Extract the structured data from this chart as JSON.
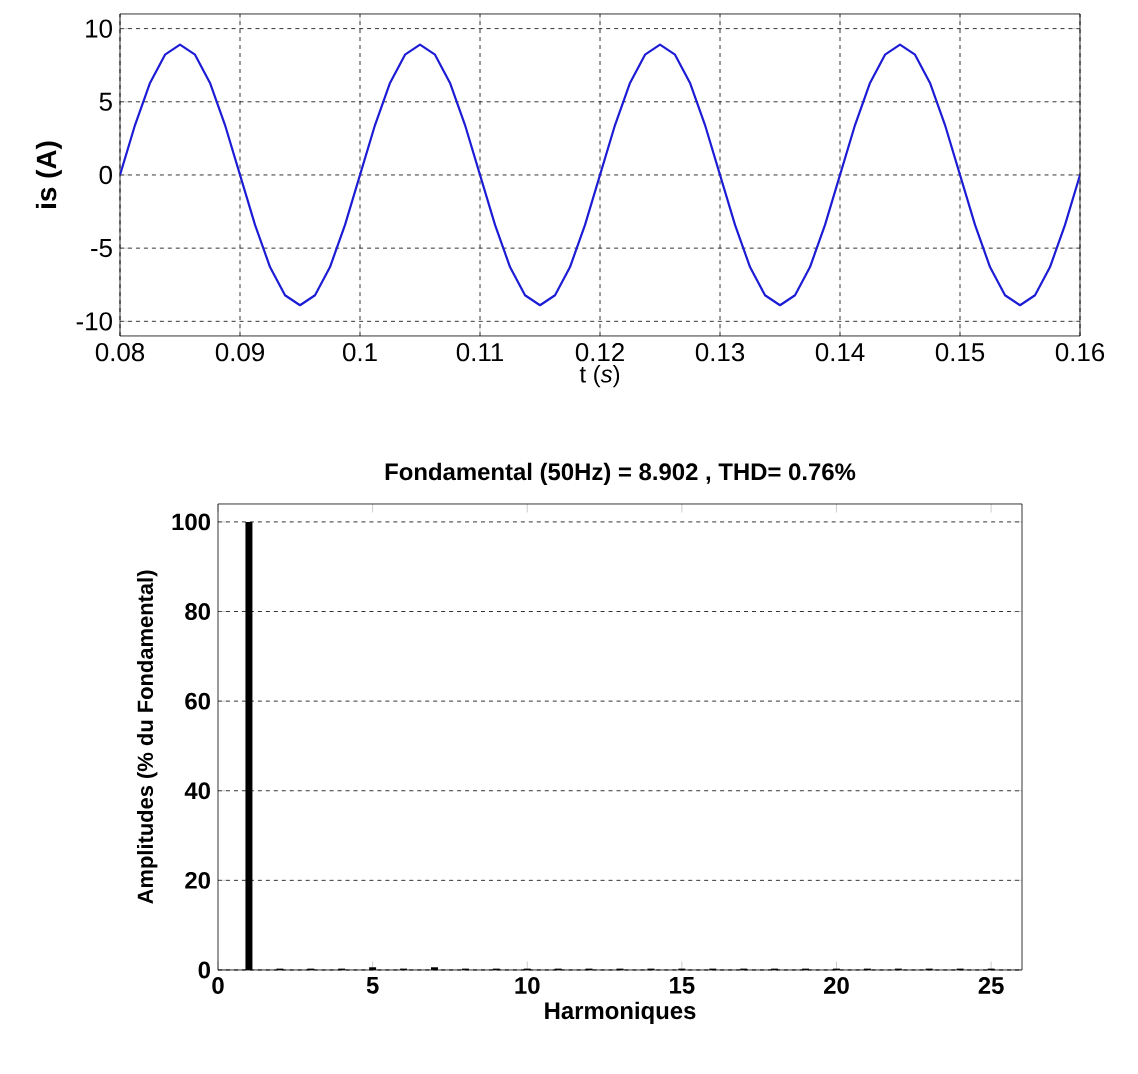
{
  "chart_data": [
    {
      "type": "line",
      "xlabel": "t (*s*)",
      "ylabel": "is (A)",
      "x": [
        0.08,
        0.08125,
        0.0825,
        0.08375,
        0.085,
        0.08625,
        0.0875,
        0.08875,
        0.09,
        0.09125,
        0.0925,
        0.09375,
        0.095,
        0.09625,
        0.0975,
        0.09875,
        0.1,
        0.10125,
        0.1025,
        0.10375,
        0.105,
        0.10625,
        0.1075,
        0.10875,
        0.11,
        0.11125,
        0.1125,
        0.11375,
        0.115,
        0.11625,
        0.1175,
        0.11875,
        0.12,
        0.12125,
        0.1225,
        0.12375,
        0.125,
        0.12625,
        0.1275,
        0.12875,
        0.13,
        0.13125,
        0.1325,
        0.13375,
        0.135,
        0.13625,
        0.1375,
        0.13875,
        0.14,
        0.14125,
        0.1425,
        0.14375,
        0.145,
        0.14625,
        0.1475,
        0.14875,
        0.15,
        0.15125,
        0.1525,
        0.15375,
        0.155,
        0.15625,
        0.1575,
        0.15875,
        0.16
      ],
      "series": [
        {
          "color": "#1c1cd4",
          "values": [
            0,
            3.41,
            6.29,
            8.22,
            8.9,
            8.22,
            6.29,
            3.41,
            0,
            -3.41,
            -6.29,
            -8.22,
            -8.9,
            -8.22,
            -6.29,
            -3.41,
            0,
            3.41,
            6.29,
            8.22,
            8.9,
            8.22,
            6.29,
            3.41,
            0,
            -3.41,
            -6.29,
            -8.22,
            -8.9,
            -8.22,
            -6.29,
            -3.41,
            0,
            3.41,
            6.29,
            8.22,
            8.9,
            8.22,
            6.29,
            3.41,
            0,
            -3.41,
            -6.29,
            -8.22,
            -8.9,
            -8.22,
            -6.29,
            -3.41,
            0,
            3.41,
            6.29,
            8.22,
            8.9,
            8.22,
            6.29,
            3.41,
            0,
            -3.41,
            -6.29,
            -8.22,
            -8.9,
            -8.22,
            -6.29,
            -3.41,
            0
          ]
        }
      ],
      "xlim": [
        0.08,
        0.16
      ],
      "ylim": [
        -11,
        11
      ],
      "xticks": [
        0.08,
        0.09,
        0.1,
        0.11,
        0.12,
        0.13,
        0.14,
        0.15,
        0.16
      ],
      "yticks": [
        -10,
        -5,
        0,
        5,
        10
      ],
      "grid": true,
      "line_style": "solid",
      "marker": "none"
    },
    {
      "type": "bar",
      "title": "Fondamental (50Hz) = 8.902 , THD= 0.76%",
      "xlabel": "Harmoniques",
      "ylabel": "Amplitudes (% du Fondamental)",
      "x": [
        1,
        2,
        3,
        4,
        5,
        6,
        7,
        8,
        9,
        10,
        11,
        12,
        13,
        14,
        15,
        16,
        17,
        18,
        19,
        20,
        21,
        22,
        23,
        24,
        25
      ],
      "values": [
        100,
        0.3,
        0.3,
        0.3,
        0.6,
        0.3,
        0.6,
        0.3,
        0.3,
        0.3,
        0.3,
        0.3,
        0.3,
        0.3,
        0.3,
        0.3,
        0.3,
        0.3,
        0.3,
        0.3,
        0.3,
        0.3,
        0.3,
        0.3,
        0.3
      ],
      "color": "#000000",
      "xlim": [
        0,
        26
      ],
      "ylim": [
        0,
        104
      ],
      "xticks": [
        0,
        5,
        10,
        15,
        20,
        25
      ],
      "yticks": [
        0,
        20,
        40,
        60,
        80,
        100
      ],
      "grid": "y"
    }
  ]
}
